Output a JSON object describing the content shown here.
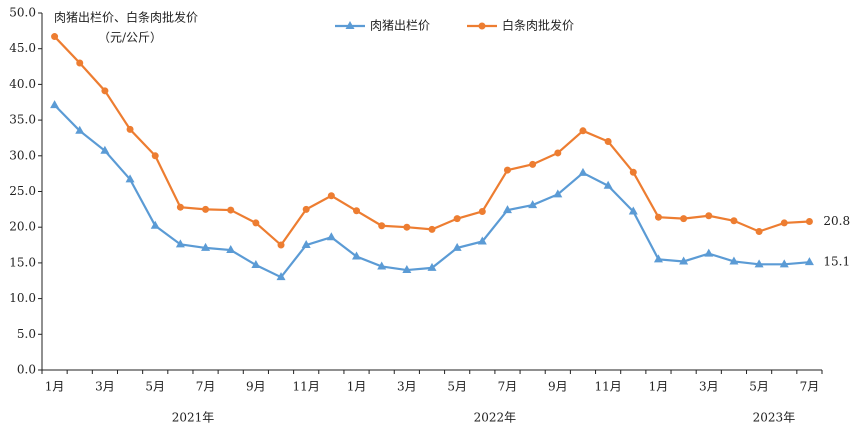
{
  "chart_data": {
    "type": "line",
    "title": "肉猪出栏价、白条肉批发价",
    "unit": "（元/公斤）",
    "categories": [
      "1月",
      null,
      "3月",
      null,
      "5月",
      null,
      "7月",
      null,
      "9月",
      null,
      "11月",
      null,
      "1月",
      null,
      "3月",
      null,
      "5月",
      null,
      "7月",
      null,
      "9月",
      null,
      "11月",
      null,
      "1月",
      null,
      "3月",
      null,
      "5月",
      null,
      "7月"
    ],
    "years": [
      "2021年",
      "2022年",
      "2023年"
    ],
    "series": [
      {
        "name": "肉猪出栏价",
        "color": "#5b9bd5",
        "marker": "triangle",
        "values": [
          37.1,
          33.5,
          30.7,
          26.7,
          20.2,
          17.6,
          17.1,
          16.8,
          14.7,
          13.0,
          17.5,
          18.6,
          15.9,
          14.5,
          14.0,
          14.3,
          17.1,
          18.0,
          22.4,
          23.1,
          24.6,
          27.6,
          25.8,
          22.2,
          15.5,
          15.2,
          16.3,
          15.2,
          14.8,
          14.8,
          15.1
        ]
      },
      {
        "name": "白条肉批发价",
        "color": "#ed7d31",
        "marker": "circle",
        "values": [
          46.7,
          43.0,
          39.1,
          33.7,
          30.0,
          22.8,
          22.5,
          22.4,
          20.6,
          17.5,
          22.5,
          24.4,
          22.3,
          20.2,
          20.0,
          19.7,
          21.2,
          22.2,
          28.0,
          28.8,
          30.4,
          33.5,
          32.0,
          27.7,
          21.4,
          21.2,
          21.6,
          20.9,
          19.4,
          20.6,
          20.8
        ]
      }
    ],
    "ylim": [
      0,
      50
    ],
    "yticks": [
      {
        "value": 0,
        "label": "0.0"
      },
      {
        "value": 5,
        "label": "5.0"
      },
      {
        "value": 10,
        "label": "10.0"
      },
      {
        "value": 15,
        "label": "15.0"
      },
      {
        "value": 20,
        "label": "20.0"
      },
      {
        "value": 25,
        "label": "25.0"
      },
      {
        "value": 30,
        "label": "30.0"
      },
      {
        "value": 35,
        "label": "35.0"
      },
      {
        "value": 40,
        "label": "40.0"
      },
      {
        "value": 45,
        "label": "45.0"
      },
      {
        "value": 50,
        "label": "50.0"
      }
    ],
    "grid": false,
    "legend": "top"
  }
}
